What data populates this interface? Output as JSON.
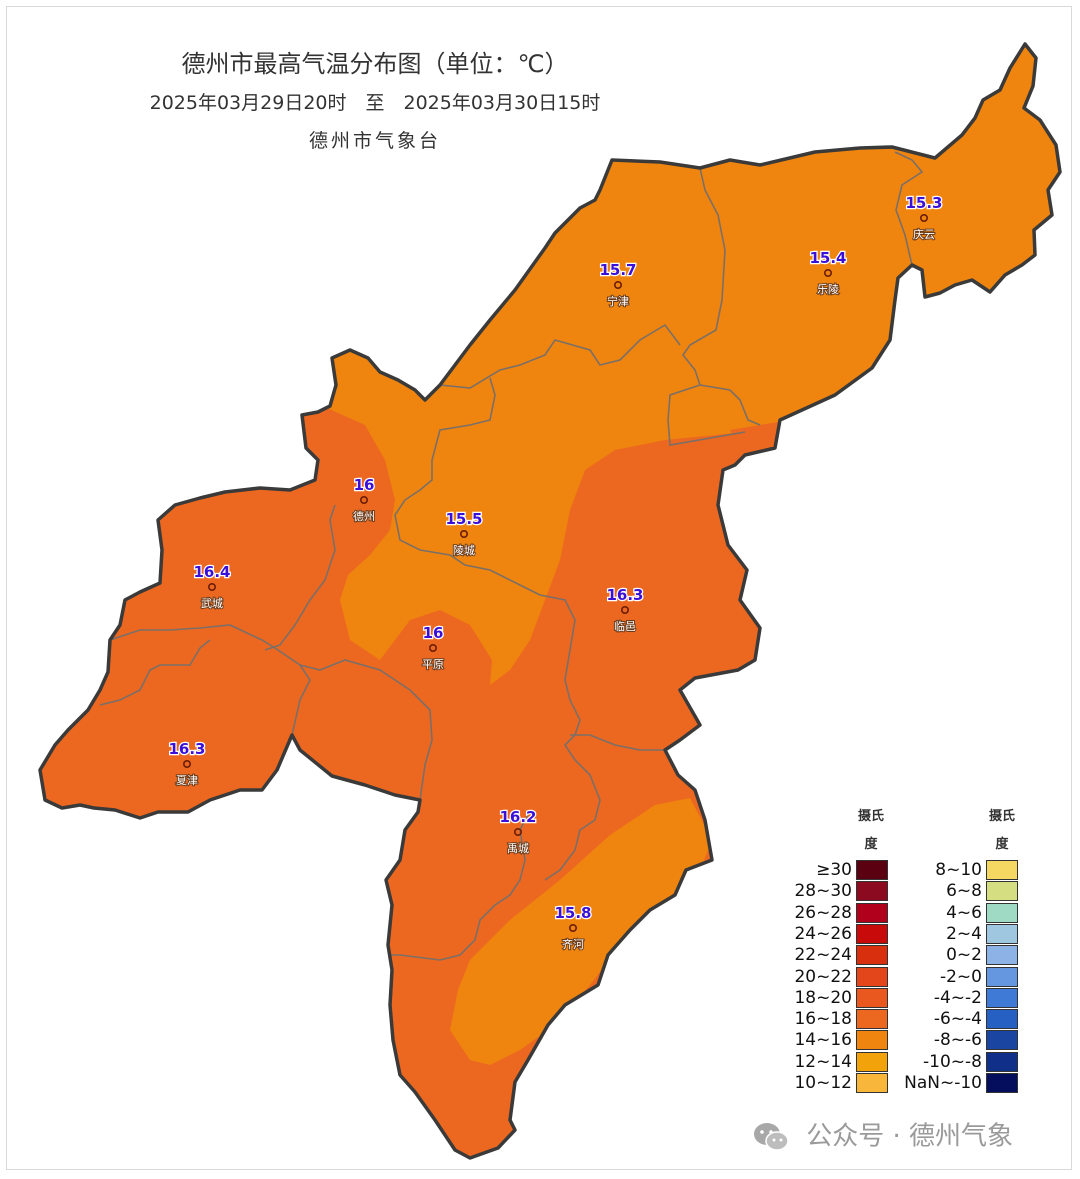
{
  "header": {
    "title": "德州市最高气温分布图（单位：℃）",
    "period": "2025年03月29日20时　至　2025年03月30日15时",
    "issuer": "德州市气象台"
  },
  "stations": [
    {
      "name": "庆云",
      "value": "15.3"
    },
    {
      "name": "乐陵",
      "value": "15.4"
    },
    {
      "name": "宁津",
      "value": "15.7"
    },
    {
      "name": "德州",
      "value": "16"
    },
    {
      "name": "陵城",
      "value": "15.5"
    },
    {
      "name": "武城",
      "value": "16.4"
    },
    {
      "name": "临邑",
      "value": "16.3"
    },
    {
      "name": "平原",
      "value": "16"
    },
    {
      "name": "夏津",
      "value": "16.3"
    },
    {
      "name": "禹城",
      "value": "16.2"
    },
    {
      "name": "齐河",
      "value": "15.8"
    }
  ],
  "legend": {
    "header_line1": "摄氏",
    "header_line2": "度",
    "left": [
      {
        "label": "≥30",
        "color": "#5a0010"
      },
      {
        "label": "28~30",
        "color": "#8b0a20"
      },
      {
        "label": "26~28",
        "color": "#b0001c"
      },
      {
        "label": "24~26",
        "color": "#c80a0a"
      },
      {
        "label": "22~24",
        "color": "#d8300f"
      },
      {
        "label": "20~22",
        "color": "#e2461a"
      },
      {
        "label": "18~20",
        "color": "#e8581f"
      },
      {
        "label": "16~18",
        "color": "#ec6820"
      },
      {
        "label": "14~16",
        "color": "#ef850e"
      },
      {
        "label": "12~14",
        "color": "#f2a20a"
      },
      {
        "label": "10~12",
        "color": "#f8b63a"
      }
    ],
    "right": [
      {
        "label": "8~10",
        "color": "#f5d862"
      },
      {
        "label": "6~8",
        "color": "#d6de82"
      },
      {
        "label": "4~6",
        "color": "#9fdac4"
      },
      {
        "label": "2~4",
        "color": "#9fc8e0"
      },
      {
        "label": "0~2",
        "color": "#8db2e6"
      },
      {
        "label": "-2~0",
        "color": "#6497e0"
      },
      {
        "label": "-4~-2",
        "color": "#3e7ad6"
      },
      {
        "label": "-6~-4",
        "color": "#2660c2"
      },
      {
        "label": "-8~-6",
        "color": "#1a46a2"
      },
      {
        "label": "-10~-8",
        "color": "#0f2f88"
      },
      {
        "label": "NaN~-10",
        "color": "#050e5c"
      }
    ]
  },
  "colors": {
    "zone_14_16": "#ef850e",
    "zone_16_18": "#ec6820",
    "border": "#3a3a3a",
    "inner_border": "#7a6a60",
    "value_text": "#3a10d8"
  },
  "watermark": {
    "text": "公众号 · 德州气象",
    "icon": "wechat-icon"
  }
}
